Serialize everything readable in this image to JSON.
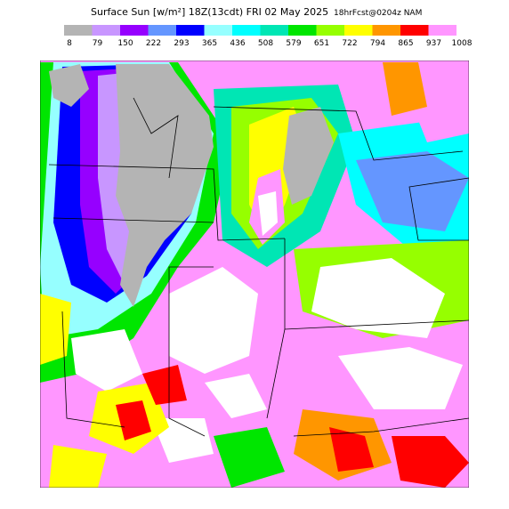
{
  "title": "Surface Sun [w/m²] 18Z(13cdt) FRI 02 May 2025",
  "subtitle": "18hrFcst@0204z NAM",
  "legend": {
    "levels": [
      8,
      79,
      150,
      222,
      293,
      365,
      436,
      508,
      579,
      651,
      722,
      794,
      865,
      937,
      1008
    ],
    "colors": [
      "#b4b4b4",
      "#c896ff",
      "#9600ff",
      "#6496ff",
      "#0000ff",
      "#96ffff",
      "#00ffff",
      "#00e6b4",
      "#00e600",
      "#96ff00",
      "#ffff00",
      "#ff9600",
      "#ff0000",
      "#ff96ff"
    ]
  }
}
